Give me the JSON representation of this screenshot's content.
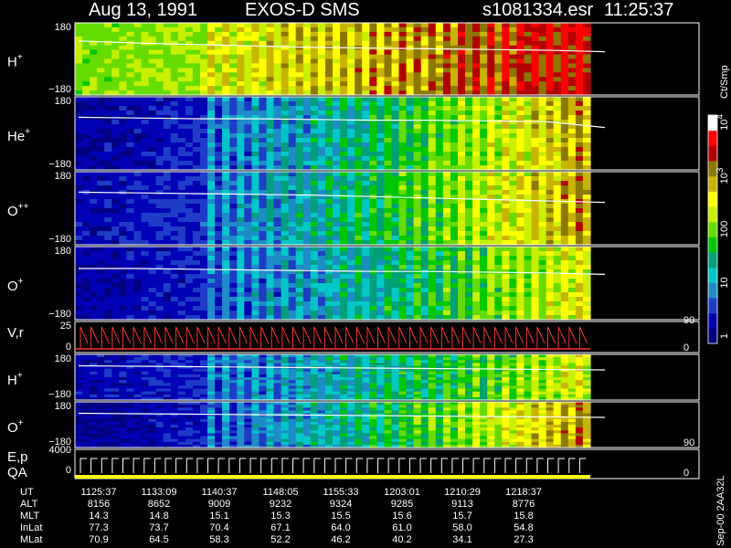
{
  "header": {
    "date": "Aug 13, 1991",
    "instrument": "EXOS-D SMS",
    "file": "s1081334.esr",
    "time": "11:25:37"
  },
  "colors": {
    "background": "#000000",
    "trace": "#ffffff",
    "velocity_trace": "#ff3030",
    "qa_bar": "#ffff00"
  },
  "panels": [
    {
      "name": "h-plus",
      "label": "H",
      "sup": "+",
      "ymax": "180",
      "ymin": "−180",
      "trace_y": [
        0.75,
        0.72,
        0.7,
        0.68,
        0.66,
        0.65,
        0.64,
        0.63,
        0.62,
        0.6
      ],
      "intensity": {
        "base": 0.55,
        "trend": 0.35,
        "hot": 0.82
      }
    },
    {
      "name": "he-plus",
      "label": "He",
      "sup": "+",
      "ymax": "180",
      "ymin": "−180",
      "trace_y": [
        0.72,
        0.71,
        0.7,
        0.7,
        0.69,
        0.68,
        0.68,
        0.67,
        0.66,
        0.58
      ],
      "intensity": {
        "base": 0.08,
        "trend": 0.65,
        "hot": 0
      }
    },
    {
      "name": "o-plus-plus",
      "label": "O",
      "sup": "++",
      "ymax": "180",
      "ymin": "−180",
      "trace_y": [
        0.72,
        0.71,
        0.7,
        0.69,
        0.68,
        0.66,
        0.64,
        0.62,
        0.6,
        0.58
      ],
      "intensity": {
        "base": 0.1,
        "trend": 0.65,
        "hot": 0
      }
    },
    {
      "name": "o-plus",
      "label": "O",
      "sup": "+",
      "ymax": "180",
      "ymin": "−180",
      "trace_y": [
        0.7,
        0.7,
        0.69,
        0.68,
        0.67,
        0.66,
        0.66,
        0.65,
        0.64,
        0.62
      ],
      "intensity": {
        "base": 0.08,
        "trend": 0.55,
        "hot": 0
      }
    },
    {
      "name": "h-plus-2",
      "label": "H",
      "sup": "+",
      "ymax": "180",
      "ymin": "−180",
      "trace_y": [
        0.75,
        0.74,
        0.73,
        0.72,
        0.71,
        0.7,
        0.69,
        0.68,
        0.67,
        0.66
      ],
      "intensity": {
        "base": 0.1,
        "trend": 0.5,
        "hot": 0
      }
    },
    {
      "name": "o-plus-2",
      "label": "O",
      "sup": "+",
      "ymax": "180",
      "ymin": "−180",
      "trace_y": [
        0.75,
        0.74,
        0.73,
        0.72,
        0.71,
        0.7,
        0.69,
        0.68,
        0.67,
        0.66
      ],
      "intensity": {
        "base": 0.06,
        "trend": 0.7,
        "hot": 0.62
      }
    }
  ],
  "vr_panel": {
    "label": "V",
    "label2": ",r",
    "ymax": "25",
    "ymin": "0",
    "right_max": "90",
    "right_min": "0"
  },
  "ep_panel": {
    "label": "E",
    "label2": ",p",
    "label_qa": "QA",
    "ymax": "4000",
    "ymin": "0",
    "right_max": "90",
    "right_min": "0"
  },
  "colorbar": {
    "unit": "Ct/Smp",
    "ticks": [
      {
        "label": "1",
        "value": 1
      },
      {
        "label": "10",
        "value": 10
      },
      {
        "label": "100",
        "value": 100
      },
      {
        "label": "10",
        "sup": "3",
        "value": 1000
      },
      {
        "label": "10",
        "sup": "4",
        "value": 10000
      }
    ],
    "stops": [
      "#000080",
      "#0000b4",
      "#1e3cc8",
      "#1e8cc8",
      "#00c8c8",
      "#00a078",
      "#00c800",
      "#64dc00",
      "#c8f000",
      "#ffff00",
      "#c8b400",
      "#8c7800",
      "#b40000",
      "#ff0000",
      "#ffffff"
    ]
  },
  "footer_stamp": "Sep-00  2AA32L",
  "table": {
    "rows": [
      {
        "key": "UT",
        "values": [
          "1125:37",
          "1133:09",
          "1140:37",
          "1148:05",
          "1155:33",
          "1203:01",
          "1210:29",
          "1218:37"
        ]
      },
      {
        "key": "ALT",
        "values": [
          "8156",
          "8652",
          "9009",
          "9232",
          "9324",
          "9285",
          "9113",
          "8776"
        ]
      },
      {
        "key": "MLT",
        "values": [
          "14.3",
          "14.8",
          "15.1",
          "15.3",
          "15.5",
          "15.6",
          "15.7",
          "15.8"
        ]
      },
      {
        "key": "InLat",
        "values": [
          "77.3",
          "73.7",
          "70.4",
          "67.1",
          "64.0",
          "61.0",
          "58.0",
          "54.8"
        ]
      },
      {
        "key": "MLat",
        "values": [
          "70.9",
          "64.5",
          "58.3",
          "52.2",
          "46.2",
          "40.2",
          "34.1",
          "27.3"
        ]
      }
    ]
  },
  "chart_data": {
    "type": "heatmap",
    "title": "Aug 13, 1991   EXOS-D SMS",
    "xlabel": "UT",
    "x": [
      "1125:37",
      "1133:09",
      "1140:37",
      "1148:05",
      "1155:33",
      "1203:01",
      "1210:29",
      "1218:37"
    ],
    "series": [
      {
        "name": "H+",
        "ylim": [
          -180,
          180
        ]
      },
      {
        "name": "He+",
        "ylim": [
          -180,
          180
        ]
      },
      {
        "name": "O++",
        "ylim": [
          -180,
          180
        ]
      },
      {
        "name": "O+",
        "ylim": [
          -180,
          180
        ]
      },
      {
        "name": "V,r",
        "ylim": [
          0,
          25
        ]
      },
      {
        "name": "H+",
        "ylim": [
          -180,
          180
        ]
      },
      {
        "name": "O+",
        "ylim": [
          -180,
          180
        ]
      },
      {
        "name": "E,p",
        "ylim": [
          0,
          4000
        ]
      }
    ],
    "colorbar_label": "Ct/Smp",
    "colorbar_range": [
      1,
      10000
    ],
    "colorbar_scale": "log"
  }
}
